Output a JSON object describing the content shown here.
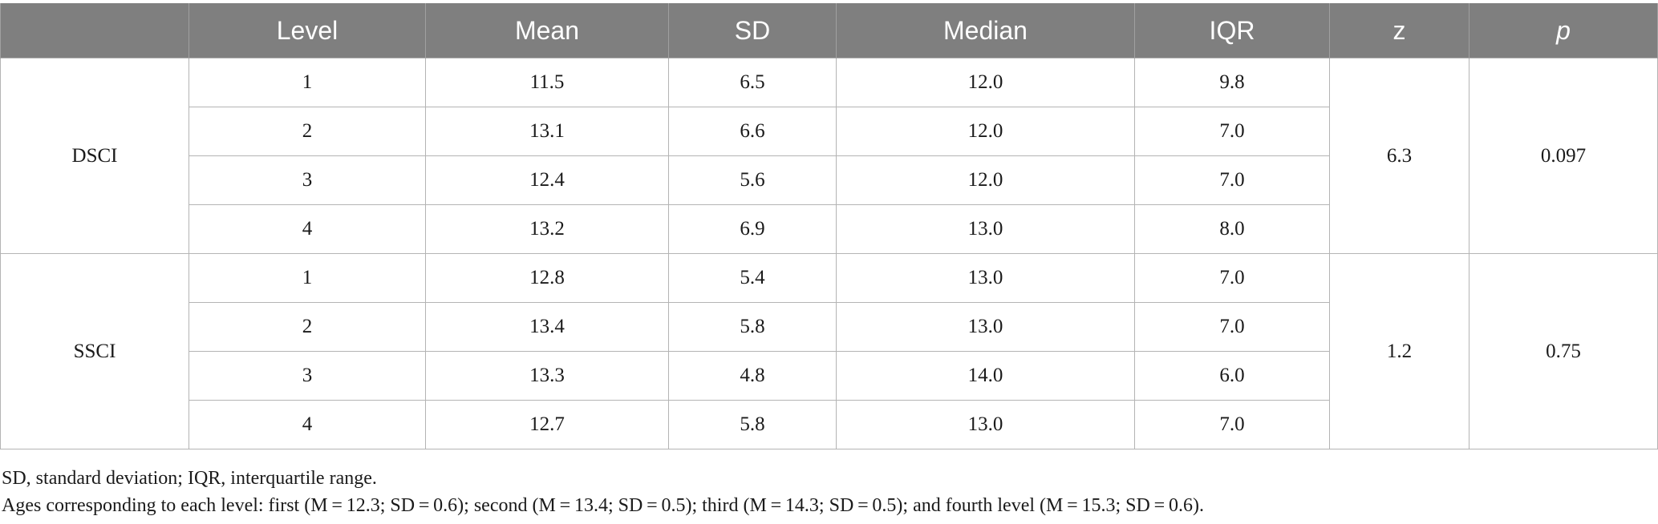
{
  "table": {
    "headers": [
      "",
      "Level",
      "Mean",
      "SD",
      "Median",
      "IQR",
      "z",
      "p"
    ],
    "groups": [
      {
        "name": "DSCI",
        "z": "6.3",
        "p": "0.097",
        "rows": [
          {
            "level": "1",
            "mean": "11.5",
            "sd": "6.5",
            "median": "12.0",
            "iqr": "9.8"
          },
          {
            "level": "2",
            "mean": "13.1",
            "sd": "6.6",
            "median": "12.0",
            "iqr": "7.0"
          },
          {
            "level": "3",
            "mean": "12.4",
            "sd": "5.6",
            "median": "12.0",
            "iqr": "7.0"
          },
          {
            "level": "4",
            "mean": "13.2",
            "sd": "6.9",
            "median": "13.0",
            "iqr": "8.0"
          }
        ]
      },
      {
        "name": "SSCI",
        "z": "1.2",
        "p": "0.75",
        "rows": [
          {
            "level": "1",
            "mean": "12.8",
            "sd": "5.4",
            "median": "13.0",
            "iqr": "7.0"
          },
          {
            "level": "2",
            "mean": "13.4",
            "sd": "5.8",
            "median": "13.0",
            "iqr": "7.0"
          },
          {
            "level": "3",
            "mean": "13.3",
            "sd": "4.8",
            "median": "14.0",
            "iqr": "6.0"
          },
          {
            "level": "4",
            "mean": "12.7",
            "sd": "5.8",
            "median": "13.0",
            "iqr": "7.0"
          }
        ]
      }
    ]
  },
  "notes": {
    "abbreviations": "SD, standard deviation; IQR, interquartile range.",
    "ages": "Ages corresponding to each level: first (M = 12.3; SD = 0.6); second (M = 13.4; SD = 0.5); third (M = 14.3; SD = 0.5); and fourth level (M = 15.3; SD = 0.6)."
  }
}
